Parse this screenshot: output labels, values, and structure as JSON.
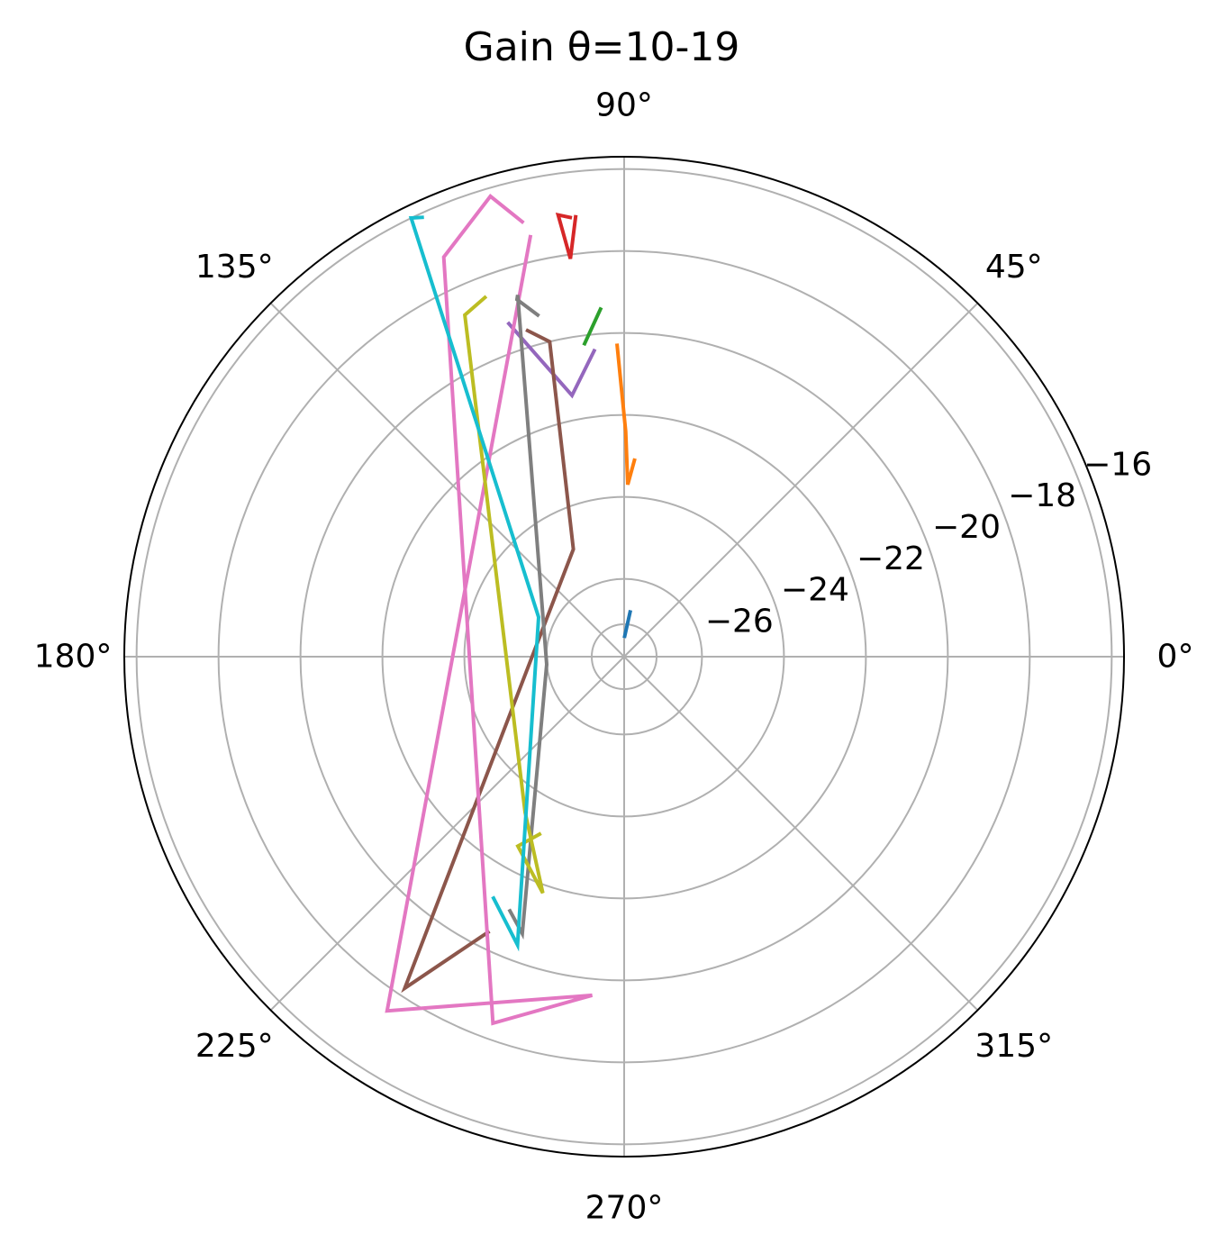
{
  "chart_data": {
    "type": "line",
    "title": "Gain θ=10-19",
    "projection": "polar",
    "theta_ticks": [
      "0°",
      "45°",
      "90°",
      "135°",
      "180°",
      "225°",
      "270°",
      "315°"
    ],
    "theta_tick_values": [
      0,
      45,
      90,
      135,
      180,
      225,
      270,
      315
    ],
    "r_ticks": [
      "−26",
      "−24",
      "−22",
      "−20",
      "−18",
      "−16"
    ],
    "r_tick_values": [
      -26,
      -24,
      -22,
      -20,
      -18,
      -16
    ],
    "rlim": [
      -27.9,
      -15.7
    ],
    "r_label_angle": 22.5,
    "grid": true,
    "legend": "none",
    "series": [
      {
        "color": "#1f77b4",
        "points": [
          [
            88.6,
            -27.4
          ],
          [
            82.4,
            -26.8
          ]
        ]
      },
      {
        "color": "#ff7f0e",
        "points": [
          [
            91.3,
            -20.3
          ],
          [
            89.6,
            -22.4
          ],
          [
            88.8,
            -23.7
          ],
          [
            87.0,
            -23.1
          ]
        ]
      },
      {
        "color": "#2ca02c",
        "points": [
          [
            93.9,
            -19.4
          ],
          [
            97.2,
            -20.2
          ]
        ]
      },
      {
        "color": "#d62728",
        "points": [
          [
            96.3,
            -17.1
          ],
          [
            97.7,
            -18.1
          ],
          [
            98.5,
            -17.0
          ],
          [
            97.0,
            -17.1
          ]
        ]
      },
      {
        "color": "#9467bd",
        "points": [
          [
            95.6,
            -20.4
          ],
          [
            101.3,
            -21.4
          ],
          [
            109.1,
            -19.3
          ]
        ]
      },
      {
        "color": "#8c564b",
        "points": [
          [
            106.5,
            -19.6
          ],
          [
            103.3,
            -20.0
          ],
          [
            115.3,
            -25.0
          ],
          [
            236.5,
            -18.2
          ],
          [
            243.7,
            -20.4
          ]
        ]
      },
      {
        "color": "#e377c2",
        "points": [
          [
            103.2,
            -17.0
          ],
          [
            106.2,
            -16.2
          ],
          [
            114.3,
            -17.2
          ],
          [
            250.3,
            -18.4
          ],
          [
            264.6,
            -19.6
          ],
          [
            236.2,
            -17.5
          ],
          [
            102.6,
            -17.4
          ]
        ]
      },
      {
        "color": "#7f7f7f",
        "points": [
          [
            104.2,
            -19.3
          ],
          [
            106.7,
            -18.8
          ],
          [
            106.4,
            -18.7
          ],
          [
            185.7,
            -26.0
          ],
          [
            249.8,
            -20.7
          ],
          [
            245.8,
            -21.1
          ]
        ]
      },
      {
        "color": "#bcbd22",
        "points": [
          [
            111.2,
            -18.5
          ],
          [
            115.0,
            -18.7
          ],
          [
            237.5,
            -23.4
          ],
          [
            251.0,
            -21.8
          ],
          [
            240.7,
            -22.6
          ],
          [
            244.5,
            -23.1
          ]
        ]
      },
      {
        "color": "#17becf",
        "points": [
          [
            114.7,
            -16.1
          ],
          [
            115.9,
            -16.0
          ],
          [
            155.2,
            -25.6
          ],
          [
            249.7,
            -20.4
          ],
          [
            241.6,
            -21.2
          ]
        ]
      }
    ]
  }
}
